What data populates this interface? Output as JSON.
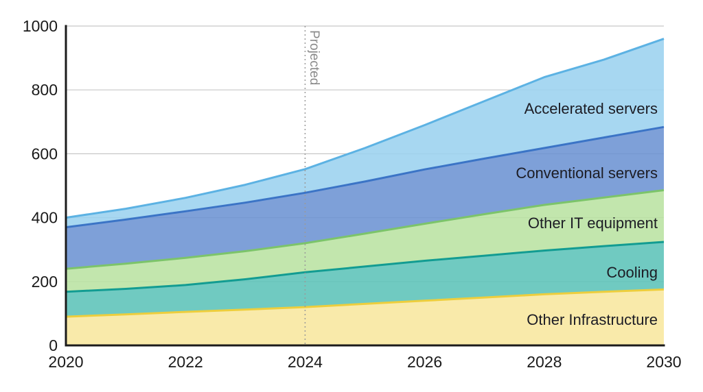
{
  "chart_data": {
    "type": "area",
    "stacked": true,
    "title": "",
    "xlabel": "",
    "ylabel": "",
    "xlim": [
      2020,
      2030
    ],
    "ylim": [
      0,
      1000
    ],
    "grid": "horizontal",
    "legend_position": "inline-right-of-plot",
    "x": [
      2020,
      2021,
      2022,
      2023,
      2024,
      2025,
      2026,
      2027,
      2028,
      2029,
      2030
    ],
    "x_ticks": [
      2020,
      2022,
      2024,
      2026,
      2028,
      2030
    ],
    "x_tick_labels": [
      "2020",
      "2022",
      "2024",
      "2026",
      "2028",
      "2030"
    ],
    "y_ticks": [
      0,
      200,
      400,
      600,
      800,
      1000
    ],
    "y_tick_labels": [
      "0",
      "200",
      "400",
      "600",
      "800",
      "1000"
    ],
    "annotation": {
      "label": "Projected",
      "x": 2024,
      "style": "dotted-vertical-line"
    },
    "series": [
      {
        "name": "Other Infrastructure",
        "fill": "#f8e79e",
        "stroke": "#edce3d",
        "values": [
          90,
          97,
          105,
          112,
          120,
          130,
          140,
          150,
          160,
          168,
          175
        ]
      },
      {
        "name": "Cooling",
        "fill": "#5cc3b8",
        "stroke": "#129c92",
        "values": [
          78,
          80,
          84,
          95,
          109,
          117,
          125,
          131,
          137,
          143,
          149
        ]
      },
      {
        "name": "Other IT equipment",
        "fill": "#b9e2a2",
        "stroke": "#7cc46a",
        "values": [
          72,
          79,
          85,
          88,
          91,
          103,
          116,
          130,
          143,
          152,
          162
        ]
      },
      {
        "name": "Conventional servers",
        "fill": "#6c93d3",
        "stroke": "#3b74c6",
        "values": [
          130,
          138,
          146,
          152,
          158,
          163,
          170,
          174,
          178,
          188,
          198
        ]
      },
      {
        "name": "Accelerated servers",
        "fill": "#9bd2ef",
        "stroke": "#5cb2e3",
        "values": [
          30,
          34,
          42,
          56,
          74,
          105,
          139,
          180,
          222,
          244,
          276
        ]
      }
    ],
    "totals_by_year": [
      400,
      428,
      462,
      503,
      552,
      618,
      690,
      765,
      840,
      895,
      960
    ]
  },
  "colors": {
    "background": "#ffffff",
    "axis": "#1b1b1b",
    "gridline": "#c7c7c7",
    "tick_text": "#1a1a1a",
    "series_label_text": "#1c1c24",
    "projected_line": "#9a9a9a",
    "projected_text": "#8a8a8a"
  }
}
